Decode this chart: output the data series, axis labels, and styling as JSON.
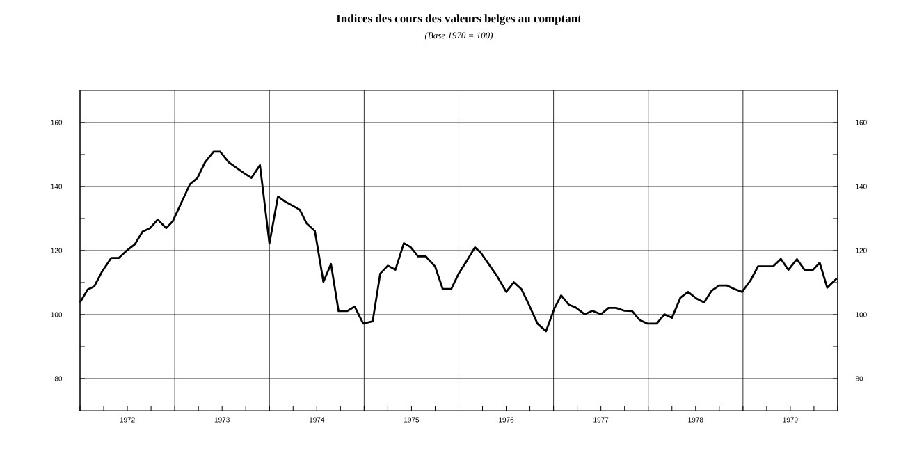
{
  "chart_data": {
    "type": "line",
    "title": "Indices des cours des valeurs belges au comptant",
    "subtitle": "(Base 1970 = 100)",
    "x": [
      1972.0,
      1972.08,
      1972.15,
      1972.23,
      1972.33,
      1972.41,
      1972.49,
      1972.58,
      1972.66,
      1972.74,
      1972.82,
      1972.91,
      1972.98,
      1973.08,
      1973.16,
      1973.24,
      1973.32,
      1973.41,
      1973.48,
      1973.57,
      1973.73,
      1973.81,
      1973.9,
      1974.0,
      1974.09,
      1974.16,
      1974.32,
      1974.39,
      1974.48,
      1974.57,
      1974.65,
      1974.73,
      1974.82,
      1974.9,
      1974.99,
      1975.09,
      1975.17,
      1975.25,
      1975.33,
      1975.42,
      1975.49,
      1975.57,
      1975.65,
      1975.75,
      1975.83,
      1975.92,
      1976.0,
      1976.08,
      1976.17,
      1976.23,
      1976.4,
      1976.5,
      1976.58,
      1976.66,
      1976.74,
      1976.83,
      1976.92,
      1977.01,
      1977.08,
      1977.16,
      1977.23,
      1977.33,
      1977.41,
      1977.5,
      1977.58,
      1977.66,
      1977.75,
      1977.83,
      1977.91,
      1977.99,
      1978.09,
      1978.17,
      1978.25,
      1978.34,
      1978.42,
      1978.51,
      1978.59,
      1978.67,
      1978.75,
      1978.83,
      1978.91,
      1978.99,
      1979.08,
      1979.16,
      1979.32,
      1979.4,
      1979.48,
      1979.57,
      1979.65,
      1979.74,
      1979.81,
      1979.89,
      1979.99
    ],
    "values": [
      103.8,
      107.8,
      108.8,
      113.3,
      117.7,
      117.7,
      119.9,
      122.0,
      125.9,
      127.0,
      129.7,
      127.0,
      129.2,
      135.6,
      140.7,
      142.7,
      147.6,
      150.9,
      150.9,
      147.6,
      144.2,
      142.7,
      146.7,
      122.2,
      136.9,
      135.4,
      132.8,
      128.6,
      126.1,
      110.2,
      115.8,
      101.1,
      101.1,
      102.5,
      97.2,
      97.9,
      112.8,
      115.3,
      114.0,
      122.3,
      121.1,
      118.2,
      118.2,
      115.0,
      108.0,
      108.0,
      112.9,
      116.6,
      121.0,
      119.4,
      112.2,
      107.1,
      110.1,
      108.0,
      103.1,
      97.2,
      94.8,
      102.0,
      106.0,
      103.1,
      102.3,
      100.1,
      101.2,
      100.1,
      102.1,
      102.1,
      101.2,
      101.1,
      98.3,
      97.2,
      97.2,
      100.1,
      99.0,
      105.3,
      107.1,
      105.0,
      103.8,
      107.5,
      109.1,
      109.1,
      108.0,
      107.1,
      110.7,
      115.1,
      115.1,
      117.4,
      114.0,
      117.3,
      114.0,
      114.0,
      116.2,
      108.4,
      111.3
    ],
    "color": "#000000",
    "xlim": [
      1972,
      1980
    ],
    "xticks": [
      {
        "value": 1972,
        "label": null
      },
      {
        "value": 1972.25,
        "label": null
      },
      {
        "value": 1972.5,
        "label": "1972"
      },
      {
        "value": 1972.75,
        "label": null
      },
      {
        "value": 1973,
        "label": null
      },
      {
        "value": 1973.25,
        "label": null
      },
      {
        "value": 1973.5,
        "label": "1973"
      },
      {
        "value": 1973.75,
        "label": null
      },
      {
        "value": 1974,
        "label": null
      },
      {
        "value": 1974.25,
        "label": null
      },
      {
        "value": 1974.5,
        "label": "1974"
      },
      {
        "value": 1974.75,
        "label": null
      },
      {
        "value": 1975,
        "label": null
      },
      {
        "value": 1975.25,
        "label": null
      },
      {
        "value": 1975.5,
        "label": "1975"
      },
      {
        "value": 1975.75,
        "label": null
      },
      {
        "value": 1976,
        "label": null
      },
      {
        "value": 1976.25,
        "label": null
      },
      {
        "value": 1976.5,
        "label": "1976"
      },
      {
        "value": 1976.75,
        "label": null
      },
      {
        "value": 1977,
        "label": null
      },
      {
        "value": 1977.25,
        "label": null
      },
      {
        "value": 1977.5,
        "label": "1977"
      },
      {
        "value": 1977.75,
        "label": null
      },
      {
        "value": 1978,
        "label": null
      },
      {
        "value": 1978.25,
        "label": null
      },
      {
        "value": 1978.5,
        "label": "1978"
      },
      {
        "value": 1978.75,
        "label": null
      },
      {
        "value": 1979,
        "label": null
      },
      {
        "value": 1979.25,
        "label": null
      },
      {
        "value": 1979.5,
        "label": "1979"
      },
      {
        "value": 1979.75,
        "label": null
      },
      {
        "value": 1980,
        "label": null
      }
    ],
    "ylim": [
      70,
      170
    ],
    "yticks": [
      80,
      {
        "value": 90,
        "label": null
      },
      100,
      {
        "value": 110,
        "label": null
      },
      120,
      {
        "value": 130,
        "label": null
      },
      140,
      {
        "value": 150,
        "label": null
      },
      160
    ],
    "y2lim": [
      70,
      170
    ],
    "y2ticks": [
      80,
      {
        "value": 90,
        "label": null
      },
      100,
      {
        "value": 110,
        "label": null
      },
      120,
      {
        "value": 130,
        "label": null
      },
      140,
      {
        "value": 150,
        "label": null
      },
      160
    ],
    "grid": true
  }
}
